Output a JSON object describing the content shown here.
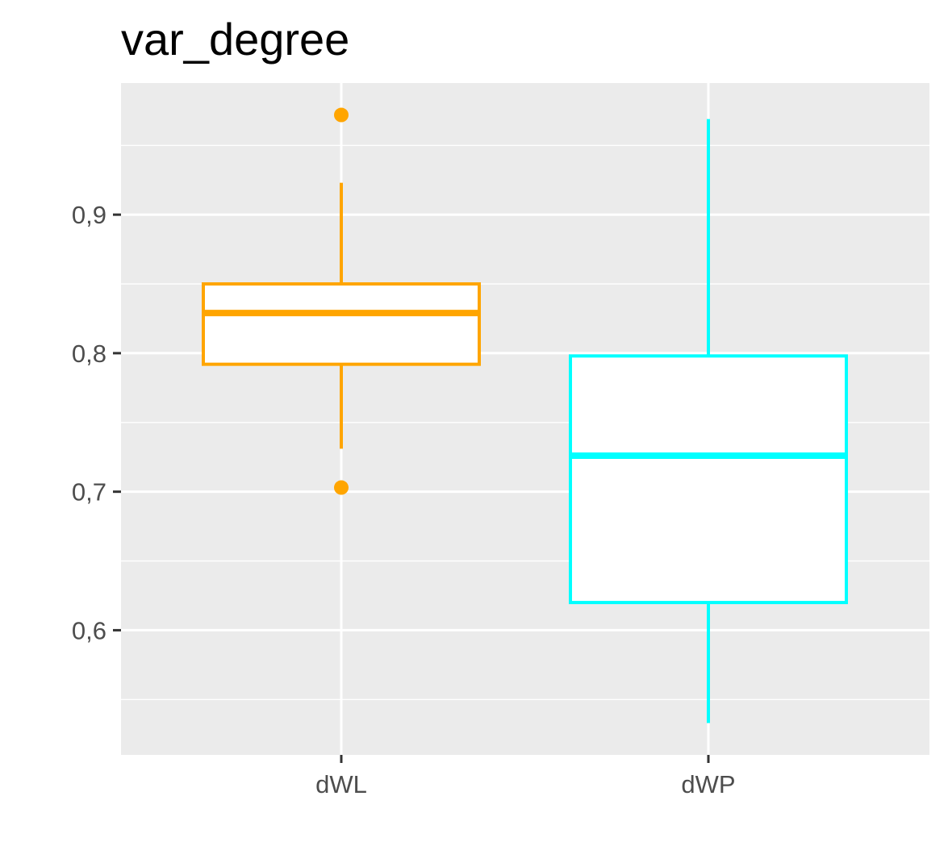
{
  "chart_data": {
    "type": "boxplot",
    "title": "var_degree",
    "xlabel": "",
    "ylabel": "",
    "categories": [
      "dWL",
      "dWP"
    ],
    "ylim": [
      0.51,
      0.995
    ],
    "y_ticks": [
      {
        "value": 0.6,
        "label": "0,6"
      },
      {
        "value": 0.7,
        "label": "0,7"
      },
      {
        "value": 0.8,
        "label": "0,8"
      },
      {
        "value": 0.9,
        "label": "0,9"
      }
    ],
    "y_minor": [
      0.55,
      0.65,
      0.75,
      0.85,
      0.95
    ],
    "grid": true,
    "legend": "none",
    "panel_color": "#ebebeb",
    "grid_color": "#ffffff",
    "series": [
      {
        "category": "dWL",
        "color": "#ffa500",
        "whisker_low": 0.731,
        "q1": 0.792,
        "median": 0.829,
        "q3": 0.85,
        "whisker_high": 0.923,
        "outliers": [
          0.972,
          0.703
        ]
      },
      {
        "category": "dWP",
        "color": "#00ffff",
        "whisker_low": 0.533,
        "q1": 0.62,
        "median": 0.726,
        "q3": 0.798,
        "whisker_high": 0.969,
        "outliers": []
      }
    ]
  }
}
